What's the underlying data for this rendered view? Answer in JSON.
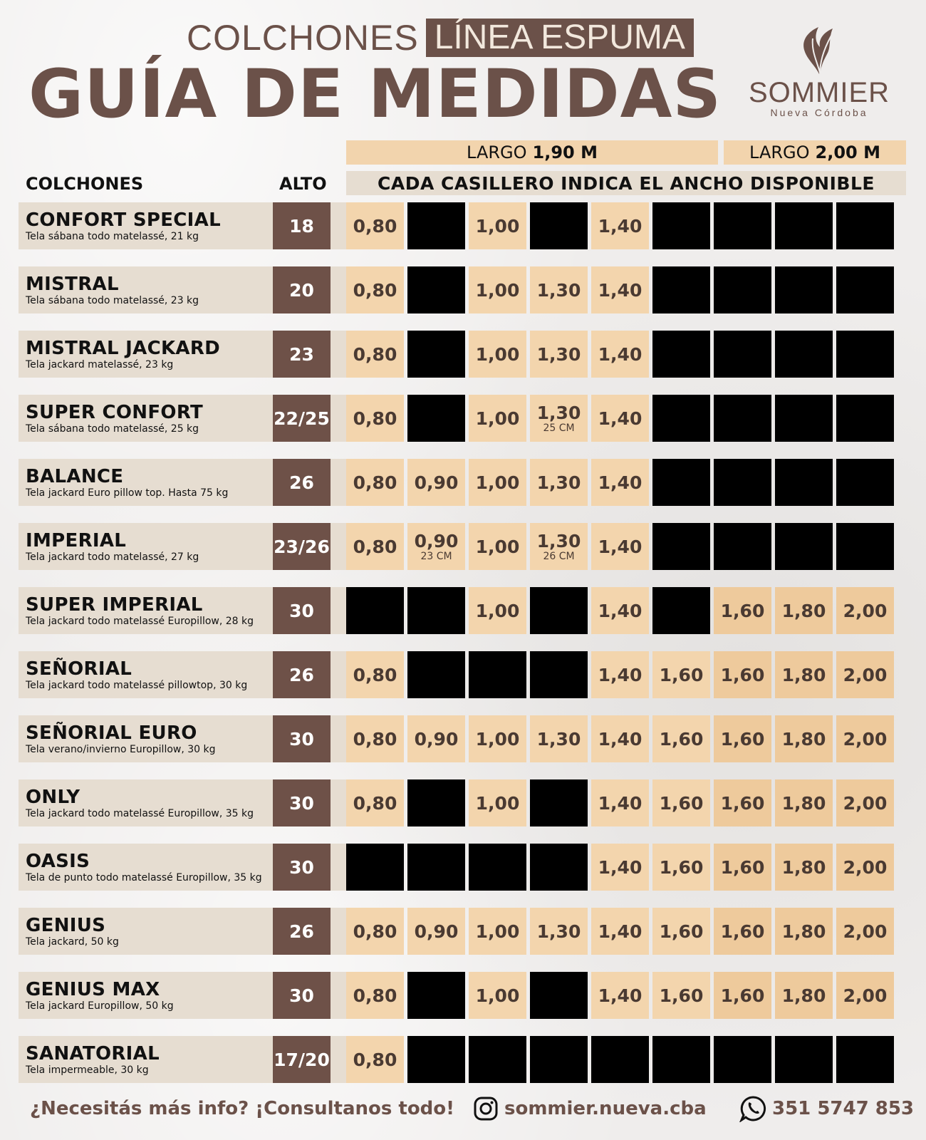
{
  "header": {
    "title_light": "COLCHONES",
    "title_boxed": "LÍNEA ESPUMA",
    "title_main": "GUÍA DE MEDIDAS",
    "logo": {
      "icon": "feather-icon",
      "brand": "SOMMIER",
      "sub": "Nueva Córdoba"
    }
  },
  "table": {
    "largo_190_prefix": "LARGO",
    "largo_190_value": "1,90 M",
    "largo_200_prefix": "LARGO",
    "largo_200_value": "2,00 M",
    "col_colchones": "COLCHONES",
    "col_alto": "ALTO",
    "cada_casillero": "CADA CASILLERO INDICA EL ANCHO DISPONIBLE",
    "rows": [
      {
        "name": "CONFORT SPECIAL",
        "desc": "Tela sábana todo matelassé, 21 kg",
        "alto": "18",
        "cells": [
          {
            "v": "0,80"
          },
          null,
          {
            "v": "1,00"
          },
          null,
          {
            "v": "1,40"
          },
          null,
          null,
          null,
          null
        ]
      },
      {
        "name": "MISTRAL",
        "desc": "Tela sábana todo matelassé, 23 kg",
        "alto": "20",
        "cells": [
          {
            "v": "0,80"
          },
          null,
          {
            "v": "1,00"
          },
          {
            "v": "1,30"
          },
          {
            "v": "1,40"
          },
          null,
          null,
          null,
          null
        ]
      },
      {
        "name": "MISTRAL JACKARD",
        "desc": "Tela jackard matelassé, 23 kg",
        "alto": "23",
        "cells": [
          {
            "v": "0,80"
          },
          null,
          {
            "v": "1,00"
          },
          {
            "v": "1,30"
          },
          {
            "v": "1,40"
          },
          null,
          null,
          null,
          null
        ]
      },
      {
        "name": "SUPER CONFORT",
        "desc": "Tela sábana todo matelassé, 25 kg",
        "alto": "22/25",
        "cells": [
          {
            "v": "0,80"
          },
          null,
          {
            "v": "1,00"
          },
          {
            "v": "1,30",
            "s": "25 CM"
          },
          {
            "v": "1,40"
          },
          null,
          null,
          null,
          null
        ]
      },
      {
        "name": "BALANCE",
        "desc": "Tela jackard Euro pillow top. Hasta 75 kg",
        "alto": "26",
        "cells": [
          {
            "v": "0,80"
          },
          {
            "v": "0,90"
          },
          {
            "v": "1,00"
          },
          {
            "v": "1,30"
          },
          {
            "v": "1,40"
          },
          null,
          null,
          null,
          null
        ]
      },
      {
        "name": "IMPERIAL",
        "desc": "Tela jackard todo matelassé, 27 kg",
        "alto": "23/26",
        "cells": [
          {
            "v": "0,80"
          },
          {
            "v": "0,90",
            "s": "23 CM"
          },
          {
            "v": "1,00"
          },
          {
            "v": "1,30",
            "s": "26 CM"
          },
          {
            "v": "1,40"
          },
          null,
          null,
          null,
          null
        ]
      },
      {
        "name": "SUPER IMPERIAL",
        "desc": "Tela jackard todo matelassé Europillow, 28 kg",
        "alto": "30",
        "cells": [
          null,
          null,
          {
            "v": "1,00"
          },
          null,
          {
            "v": "1,40"
          },
          null,
          {
            "v": "1,60"
          },
          {
            "v": "1,80"
          },
          {
            "v": "2,00"
          }
        ]
      },
      {
        "name": "SEÑORIAL",
        "desc": "Tela jackard todo matelassé pillowtop, 30 kg",
        "alto": "26",
        "cells": [
          {
            "v": "0,80"
          },
          null,
          null,
          null,
          {
            "v": "1,40"
          },
          {
            "v": "1,60"
          },
          {
            "v": "1,60"
          },
          {
            "v": "1,80"
          },
          {
            "v": "2,00"
          }
        ]
      },
      {
        "name": "SEÑORIAL EURO",
        "desc": "Tela verano/invierno Europillow, 30 kg",
        "alto": "30",
        "cells": [
          {
            "v": "0,80"
          },
          {
            "v": "0,90"
          },
          {
            "v": "1,00"
          },
          {
            "v": "1,30"
          },
          {
            "v": "1,40"
          },
          {
            "v": "1,60"
          },
          {
            "v": "1,60"
          },
          {
            "v": "1,80"
          },
          {
            "v": "2,00"
          }
        ]
      },
      {
        "name": "ONLY",
        "desc": "Tela jackard todo matelassé Europillow, 35 kg",
        "alto": "30",
        "cells": [
          {
            "v": "0,80"
          },
          null,
          {
            "v": "1,00"
          },
          null,
          {
            "v": "1,40"
          },
          {
            "v": "1,60"
          },
          {
            "v": "1,60"
          },
          {
            "v": "1,80"
          },
          {
            "v": "2,00"
          }
        ]
      },
      {
        "name": "OASIS",
        "desc": "Tela de punto todo matelassé Europillow, 35 kg",
        "alto": "30",
        "cells": [
          null,
          null,
          null,
          null,
          {
            "v": "1,40"
          },
          {
            "v": "1,60"
          },
          {
            "v": "1,60"
          },
          {
            "v": "1,80"
          },
          {
            "v": "2,00"
          }
        ]
      },
      {
        "name": "GENIUS",
        "desc": "Tela jackard, 50 kg",
        "alto": "26",
        "cells": [
          {
            "v": "0,80"
          },
          {
            "v": "0,90"
          },
          {
            "v": "1,00"
          },
          {
            "v": "1,30"
          },
          {
            "v": "1,40"
          },
          {
            "v": "1,60"
          },
          {
            "v": "1,60"
          },
          {
            "v": "1,80"
          },
          {
            "v": "2,00"
          }
        ]
      },
      {
        "name": "GENIUS MAX",
        "desc": "Tela jackard Europillow, 50 kg",
        "alto": "30",
        "cells": [
          {
            "v": "0,80"
          },
          null,
          {
            "v": "1,00"
          },
          null,
          {
            "v": "1,40"
          },
          {
            "v": "1,60"
          },
          {
            "v": "1,60"
          },
          {
            "v": "1,80"
          },
          {
            "v": "2,00"
          }
        ]
      },
      {
        "name": "SANATORIAL",
        "desc": "Tela impermeable, 30 kg",
        "alto": "17/20",
        "cells": [
          {
            "v": "0,80"
          },
          null,
          null,
          null,
          null,
          null,
          null,
          null,
          null
        ]
      }
    ]
  },
  "footer": {
    "info": "¿Necesitás más info? ¡Consultanos todo!",
    "instagram_icon": "instagram-icon",
    "instagram": "sommier.nueva.cba",
    "whatsapp_icon": "whatsapp-icon",
    "phone": "351 5747 853"
  },
  "colors": {
    "brown": "#6b5149",
    "cell_190": "#f3d5ad",
    "cell_200": "#eeca9c",
    "row_bg": "#e6ddd1",
    "unavailable": "#000000"
  }
}
